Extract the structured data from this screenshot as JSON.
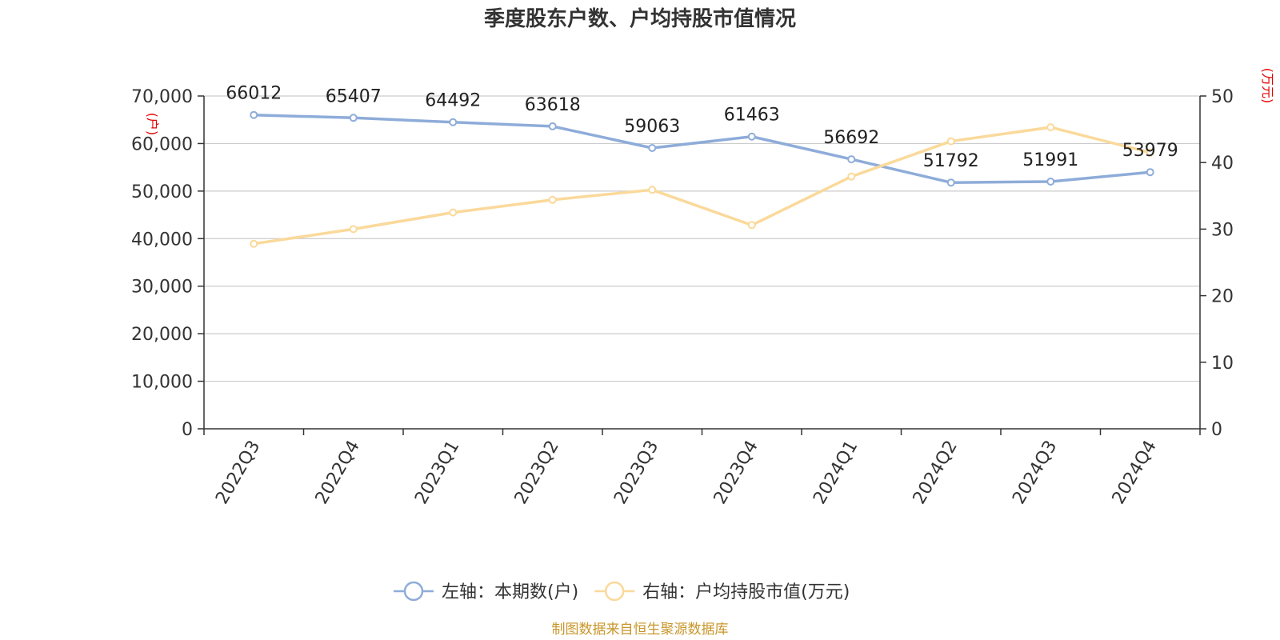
{
  "chart_data": {
    "type": "line",
    "title": "季度股东户数、户均持股市值情况",
    "categories": [
      "2022Q3",
      "2022Q4",
      "2023Q1",
      "2023Q2",
      "2023Q3",
      "2023Q4",
      "2024Q1",
      "2024Q2",
      "2024Q3",
      "2024Q4"
    ],
    "left_axis": {
      "unit": "(户)",
      "range": [
        0,
        70000
      ],
      "ticks": [
        "0",
        "10,000",
        "20,000",
        "30,000",
        "40,000",
        "50,000",
        "60,000",
        "70,000"
      ]
    },
    "right_axis": {
      "unit": "(万元)",
      "range": [
        0,
        50
      ],
      "ticks": [
        "0",
        "10",
        "20",
        "30",
        "40",
        "50"
      ]
    },
    "series": [
      {
        "name": "左轴：本期数(户)",
        "axis": "left",
        "color": "#8eacd9",
        "values": [
          66012,
          65407,
          64492,
          63618,
          59063,
          61463,
          56692,
          51792,
          51991,
          53979
        ],
        "labels": [
          "66012",
          "65407",
          "64492",
          "63618",
          "59063",
          "61463",
          "56692",
          "51792",
          "51991",
          "53979"
        ]
      },
      {
        "name": "右轴：户均持股市值(万元)",
        "axis": "right",
        "color": "#fad99a",
        "values": [
          27.8,
          30.0,
          32.5,
          34.4,
          35.9,
          30.6,
          37.9,
          43.2,
          45.3,
          41.5
        ]
      }
    ],
    "grid": true,
    "legend_position": "bottom"
  },
  "source": "制图数据来自恒生聚源数据库"
}
